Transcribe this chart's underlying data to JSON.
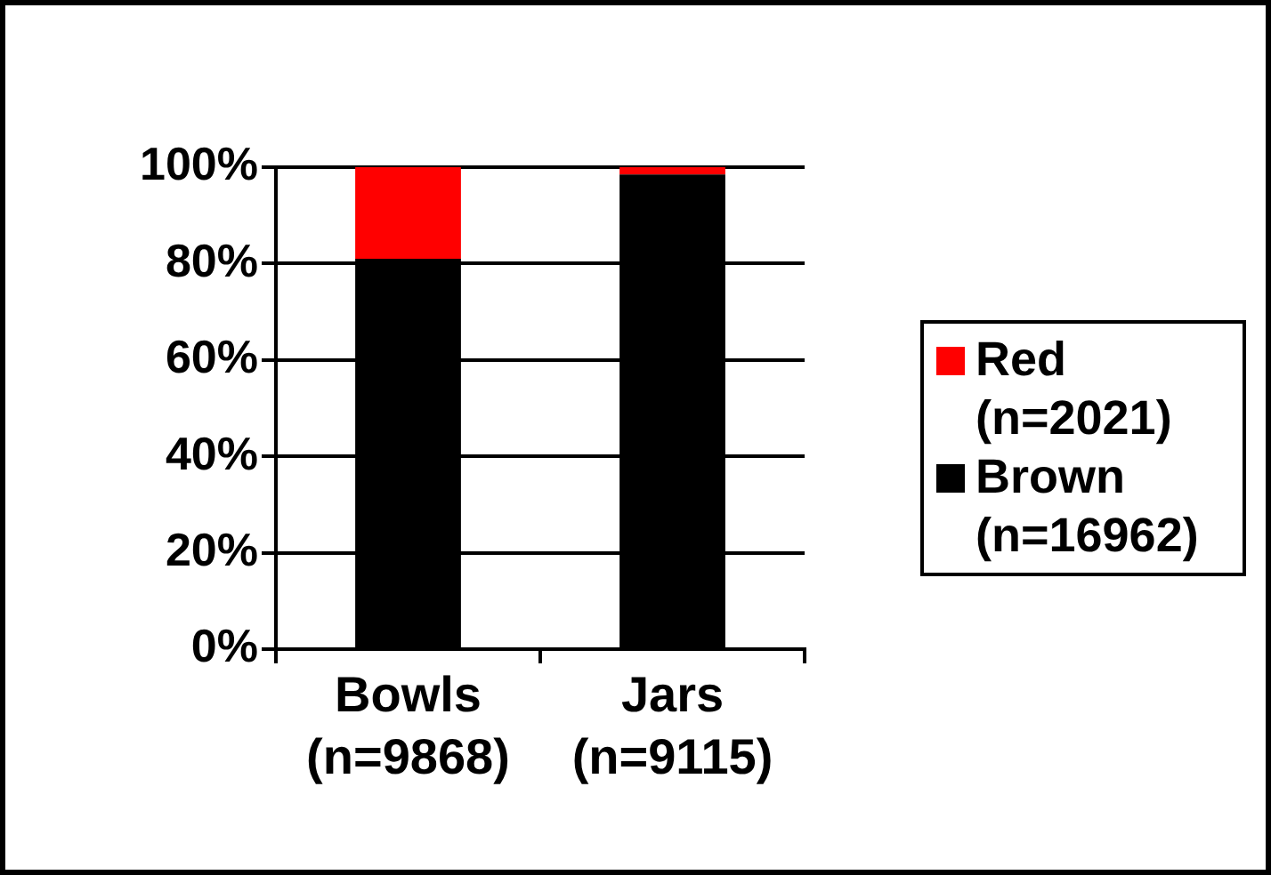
{
  "chart_data": {
    "type": "bar",
    "stacked": true,
    "categories": [
      "Bowls\n(n=9868)",
      "Jars\n(n=9115)"
    ],
    "series": [
      {
        "name": "Brown\n(n=16962)",
        "color": "#000000",
        "values": [
          81,
          98.5
        ]
      },
      {
        "name": "Red\n(n=2021)",
        "color": "#ff0000",
        "values": [
          19,
          1.5
        ]
      }
    ],
    "ylim": [
      0,
      100
    ],
    "yticks": [
      {
        "value": 0,
        "label": "0%"
      },
      {
        "value": 20,
        "label": "20%"
      },
      {
        "value": 40,
        "label": "40%"
      },
      {
        "value": 60,
        "label": "60%"
      },
      {
        "value": 80,
        "label": "80%"
      },
      {
        "value": 100,
        "label": "100%"
      }
    ],
    "grid": "y",
    "legend": "right"
  }
}
